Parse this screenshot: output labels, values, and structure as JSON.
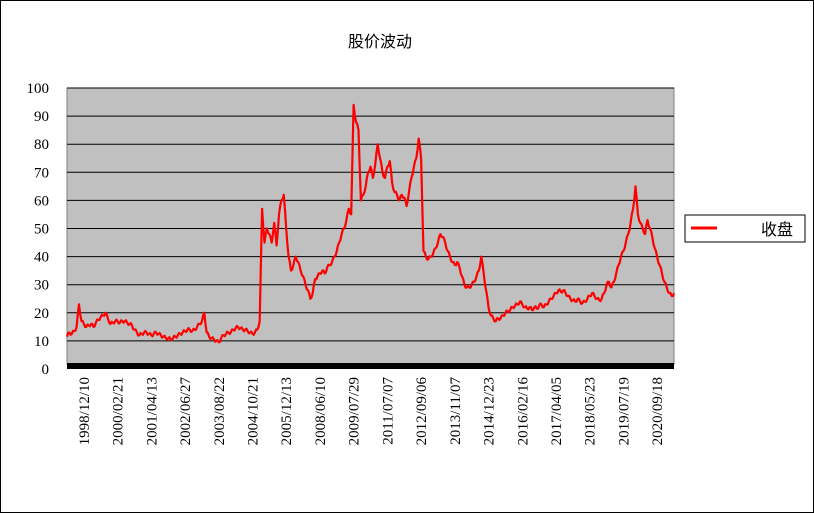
{
  "chart_data": {
    "type": "line",
    "title": "股价波动",
    "xlabel": "",
    "ylabel": "",
    "ylim": [
      0,
      100
    ],
    "yticks": [
      "0",
      "10",
      "20",
      "30",
      "40",
      "50",
      "60",
      "70",
      "80",
      "90",
      "100"
    ],
    "xtick_labels": [
      "1998/12/10",
      "2000/02/21",
      "2001/04/13",
      "2002/06/27",
      "2003/08/22",
      "2004/10/21",
      "2005/12/13",
      "2008/06/10",
      "2009/07/29",
      "2011/07/07",
      "2012/09/06",
      "2013/11/07",
      "2014/12/23",
      "2016/02/16",
      "2017/04/05",
      "2018/05/23",
      "2019/07/19",
      "2020/09/18"
    ],
    "grid": true,
    "legend_position": "right",
    "plot_background": "#c0c0c0",
    "line_color": "#ff0000",
    "series": [
      {
        "name": "收盘",
        "values": [
          11.5,
          13,
          12.5,
          13.5,
          15,
          23,
          17,
          16,
          15,
          15.5,
          16,
          15,
          16.5,
          17.5,
          18.5,
          19,
          20,
          18,
          16,
          16.5,
          17,
          17,
          16.5,
          17,
          17,
          16.5,
          16,
          15.5,
          14,
          13,
          12,
          12.5,
          13,
          13,
          12.5,
          12,
          12.5,
          13,
          12.5,
          12,
          11.5,
          11,
          11,
          10.5,
          11,
          11.5,
          12,
          12.5,
          13,
          13.5,
          14,
          14,
          13.5,
          14,
          15,
          16,
          17,
          20,
          13,
          11.5,
          11,
          10.5,
          10,
          9.5,
          11,
          12,
          12.5,
          13,
          13,
          14,
          14.5,
          15,
          14.5,
          14,
          14,
          13.5,
          13,
          12.5,
          13,
          14,
          17,
          57,
          45,
          50,
          48,
          45,
          52,
          44,
          55,
          60,
          62,
          50,
          40,
          35,
          37,
          40,
          38,
          35,
          33,
          30,
          28,
          25,
          27,
          32,
          33,
          34,
          35,
          34,
          36,
          37,
          38,
          40,
          42,
          45,
          48,
          50,
          53,
          57,
          55,
          94,
          88,
          85,
          60,
          62,
          65,
          70,
          72,
          68,
          73,
          80,
          75,
          70,
          68,
          72,
          74,
          66,
          63,
          62,
          60,
          62,
          61,
          58,
          63,
          68,
          72,
          75,
          82,
          75,
          42,
          40,
          39,
          40,
          41,
          43,
          45,
          48,
          47,
          45,
          42,
          40,
          38,
          37,
          38,
          36,
          33,
          30,
          29,
          29,
          30,
          31,
          33,
          35,
          40,
          34,
          28,
          22,
          19,
          18,
          17,
          18,
          18,
          19,
          20,
          20.5,
          21,
          22,
          22.5,
          23,
          24,
          23,
          22,
          21.5,
          22,
          21,
          22,
          21.5,
          22.5,
          23,
          22,
          23,
          24,
          25,
          26,
          27,
          28,
          27.5,
          28,
          27,
          26,
          25,
          24.5,
          24,
          25,
          24,
          23.5,
          24,
          25,
          26,
          27,
          26,
          25,
          24.5,
          25,
          27,
          30,
          31,
          29,
          31,
          34,
          37,
          40,
          42,
          45,
          48,
          52,
          57,
          65,
          55,
          52,
          50,
          48,
          53,
          50,
          47,
          43,
          40,
          37,
          34,
          31,
          29,
          27,
          26,
          27
        ]
      }
    ]
  }
}
